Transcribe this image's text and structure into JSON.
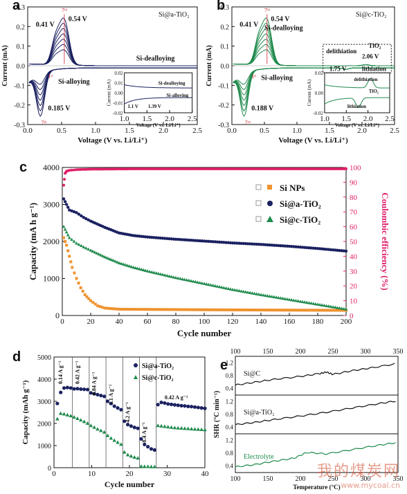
{
  "panels": {
    "a": {
      "letter": "a",
      "sample_label": "Si@a-TiO₂",
      "xlabel": "Voltage (V vs. Li/Li⁺)",
      "ylabel": "Current (mA)",
      "xticks": [
        "0.0",
        "0.5",
        "1.0",
        "1.5",
        "2.0",
        "2.5"
      ],
      "yticks": [
        "0.3",
        "0.2",
        "0.1",
        "0.0",
        "-0.1",
        "-0.2",
        "-0.3"
      ],
      "annotations": [
        "0.41 V",
        "0.54 V",
        "7ᵗʰ",
        "Si-dealloying",
        "Si-alloying",
        "0.185 V",
        "7ᵗʰ",
        "1ˢᵗ"
      ],
      "inset": {
        "xlabel": "Voltage (V vs. Li/Li⁺)",
        "ylabel": "Current (mA)",
        "xticks": [
          "1.0",
          "1.5",
          "2.0",
          "2.5"
        ],
        "yticks": [
          "0.02",
          "0.01",
          "0.00",
          "-0.01",
          "-0.02"
        ],
        "annotations": [
          "Si-dealloying",
          "Si-alloying",
          "1.1 V",
          "1.39 V"
        ]
      }
    },
    "b": {
      "letter": "b",
      "sample_label": "Si@c-TiO₂",
      "xlabel": "Voltage (V vs. Li/Li⁺)",
      "ylabel": "Current (mA)",
      "xticks": [
        "0.0",
        "0.5",
        "1.0",
        "1.5",
        "2.0",
        "2.5"
      ],
      "yticks": [
        "0.3",
        "0.2",
        "0.1",
        "0.0",
        "-0.1",
        "-0.2",
        "-0.3"
      ],
      "annotations": [
        "0.41 V",
        "0.54 V",
        "7ᵗʰ",
        "Si-dealloying",
        "Si-alloying",
        "0.188 V",
        "7ᵗʰ",
        "1ˢᵗ",
        "delithiation",
        "TiO₂",
        "2.06 V",
        "1.75 V",
        "lithiation"
      ],
      "inset": {
        "xlabel": "Voltage (V vs. Li/Li⁺)",
        "ylabel": "Current (mA)",
        "xticks": [
          "1.0",
          "1.5",
          "2.0",
          "2.5"
        ],
        "yticks": [
          "0.02",
          "0.00",
          "-0.02"
        ],
        "annotations": [
          "delithiation",
          "TiO₂",
          "lithiation"
        ]
      }
    },
    "c": {
      "letter": "c"
    },
    "d": {
      "letter": "d"
    },
    "e": {
      "letter": "e"
    }
  },
  "colors": {
    "navy": "#1b2160",
    "green": "#1f8a4c",
    "orange": "#f0932f",
    "pink": "#e0206a",
    "red": "#cc2233"
  },
  "chart_data": [
    {
      "type": "line",
      "panel": "c",
      "xlabel": "Cycle number",
      "ylabel": "Capacity (mA h g⁻¹)",
      "y2label": "Coulombic efficiency (%)",
      "xlim": [
        0,
        200
      ],
      "ylim": [
        0,
        4000
      ],
      "y2lim": [
        0,
        100
      ],
      "xticks": [
        "0",
        "20",
        "40",
        "60",
        "80",
        "100",
        "120",
        "140",
        "160",
        "180",
        "200"
      ],
      "yticks": [
        "0",
        "1000",
        "2000",
        "3000",
        "4000"
      ],
      "y2ticks": [
        "0",
        "10",
        "20",
        "30",
        "40",
        "50",
        "60",
        "70",
        "80",
        "90",
        "100"
      ],
      "legend": [
        "Si NPs",
        "Si@a-TiO₂",
        "Si@c-TiO₂"
      ],
      "legend_position": "top-right",
      "series": [
        {
          "name": "Si NPs",
          "color": "#f0932f",
          "marker": "square",
          "x": [
            1,
            3,
            5,
            7,
            10,
            13,
            16,
            20,
            25,
            30,
            40,
            60,
            80,
            100,
            130,
            160,
            200
          ],
          "y": [
            2100,
            1900,
            1600,
            1300,
            1000,
            750,
            560,
            400,
            260,
            200,
            170,
            165,
            160,
            155,
            150,
            145,
            140
          ]
        },
        {
          "name": "Si@a-TiO₂",
          "color": "#1b2160",
          "marker": "circle",
          "x": [
            1,
            3,
            5,
            10,
            15,
            20,
            30,
            40,
            50,
            60,
            80,
            100,
            120,
            140,
            160,
            180,
            200
          ],
          "y": [
            3150,
            3000,
            2850,
            2780,
            2650,
            2550,
            2380,
            2230,
            2160,
            2120,
            2060,
            2010,
            1960,
            1920,
            1870,
            1810,
            1740
          ]
        },
        {
          "name": "Si@c-TiO₂",
          "color": "#1f8a4c",
          "marker": "triangle",
          "x": [
            1,
            3,
            5,
            10,
            15,
            20,
            30,
            40,
            50,
            60,
            80,
            100,
            120,
            140,
            160,
            180,
            200
          ],
          "y": [
            2400,
            2250,
            2100,
            1950,
            1850,
            1760,
            1580,
            1420,
            1300,
            1200,
            1020,
            860,
            700,
            560,
            430,
            300,
            170
          ]
        },
        {
          "name": "Coulombic efficiency",
          "color": "#e0206a",
          "axis": "y2",
          "x": [
            1,
            2,
            3,
            5,
            10,
            20,
            50,
            100,
            150,
            200
          ],
          "y": [
            88,
            96,
            97.5,
            98,
            98.5,
            98.8,
            99,
            99,
            99,
            99
          ]
        }
      ]
    },
    {
      "type": "scatter",
      "panel": "d",
      "xlabel": "Cycle number",
      "ylabel": "Capacity (mAh g⁻¹)",
      "xlim": [
        0,
        45
      ],
      "ylim": [
        0,
        5000
      ],
      "xticks": [
        "0",
        "10",
        "20",
        "30",
        "40"
      ],
      "yticks": [
        "0",
        "1000",
        "2000",
        "3000",
        "4000",
        "5000"
      ],
      "legend": [
        "Si@a-TiO₂",
        "Si@c-TiO₂"
      ],
      "legend_position": "top-right",
      "rate_labels": [
        "0.14 A g⁻¹",
        "0.42 A g⁻¹",
        "0.84 A g⁻¹",
        "2.1 A g⁻¹",
        "4.2 A g⁻¹",
        "8.4 A g⁻¹",
        "0.42 A g⁻¹"
      ],
      "series": [
        {
          "name": "Si@a-TiO₂",
          "color": "#1b2160",
          "x": [
            1,
            2,
            3,
            4,
            5,
            6,
            7,
            8,
            9,
            10,
            11,
            12,
            13,
            14,
            15,
            16,
            17,
            18,
            19,
            20,
            21,
            22,
            23,
            24,
            25,
            26,
            27,
            28,
            29,
            30,
            31,
            32,
            33,
            34,
            35,
            36,
            37,
            38,
            39,
            40,
            41,
            42,
            43,
            44,
            45
          ],
          "y": [
            2900,
            3400,
            3600,
            3620,
            3600,
            3560,
            3570,
            3550,
            3540,
            3530,
            3380,
            3340,
            3300,
            3260,
            3220,
            3000,
            2900,
            2780,
            2700,
            2620,
            2100,
            1950,
            1880,
            1820,
            1780,
            1300,
            1050,
            950,
            850,
            800,
            2850,
            2950,
            2920,
            2880,
            2860,
            2840,
            2820,
            2800,
            2790,
            2770,
            2760,
            2740,
            2720,
            2700,
            2680
          ]
        },
        {
          "name": "Si@c-TiO₂",
          "color": "#1f8a4c",
          "x": [
            1,
            2,
            3,
            4,
            5,
            6,
            7,
            8,
            9,
            10,
            11,
            12,
            13,
            14,
            15,
            16,
            17,
            18,
            19,
            20,
            21,
            22,
            23,
            24,
            25,
            26,
            27,
            28,
            29,
            30,
            31,
            32,
            33,
            34,
            35,
            36,
            37,
            38,
            39,
            40,
            41,
            42,
            43,
            44,
            45
          ],
          "y": [
            2200,
            2450,
            2420,
            2380,
            2340,
            2280,
            2220,
            2150,
            2080,
            2000,
            1900,
            1820,
            1740,
            1670,
            1600,
            1450,
            1330,
            1230,
            1140,
            1050,
            700,
            580,
            520,
            470,
            430,
            60,
            50,
            45,
            40,
            40,
            1900,
            1880,
            1860,
            1840,
            1820,
            1800,
            1790,
            1780,
            1770,
            1760,
            1750,
            1740,
            1730,
            1720,
            1710
          ]
        }
      ]
    },
    {
      "type": "line",
      "panel": "e",
      "xlabel": "Temperature (°C)",
      "ylabel": "SHR (°C min⁻¹)",
      "xlim": [
        100,
        350
      ],
      "xticks": [
        "100",
        "150",
        "200",
        "250",
        "300",
        "350"
      ],
      "yticks": [
        "0.4",
        "0.8",
        "1.2"
      ],
      "series": [
        {
          "name": "Si@C",
          "color": "#111111",
          "x": [
            100,
            130,
            160,
            200,
            230,
            240,
            250,
            280,
            310,
            350
          ],
          "y": [
            0.35,
            0.45,
            0.55,
            0.65,
            0.75,
            0.8,
            0.72,
            0.85,
            0.95,
            1.1
          ]
        },
        {
          "name": "Si@a-TiO₂",
          "color": "#111111",
          "x": [
            100,
            130,
            160,
            200,
            240,
            280,
            320,
            350
          ],
          "y": [
            0.32,
            0.4,
            0.5,
            0.62,
            0.75,
            0.9,
            1.05,
            1.15
          ]
        },
        {
          "name": "Electrolyte",
          "color": "#1f8a4c",
          "x": [
            100,
            130,
            160,
            190,
            210,
            240,
            280,
            320,
            350
          ],
          "y": [
            0.2,
            0.28,
            0.4,
            0.5,
            0.7,
            0.65,
            0.8,
            0.95,
            1.05
          ]
        }
      ]
    }
  ],
  "watermark": {
    "brand": "我的煤炭网",
    "url": "www.mycoal.cn"
  }
}
